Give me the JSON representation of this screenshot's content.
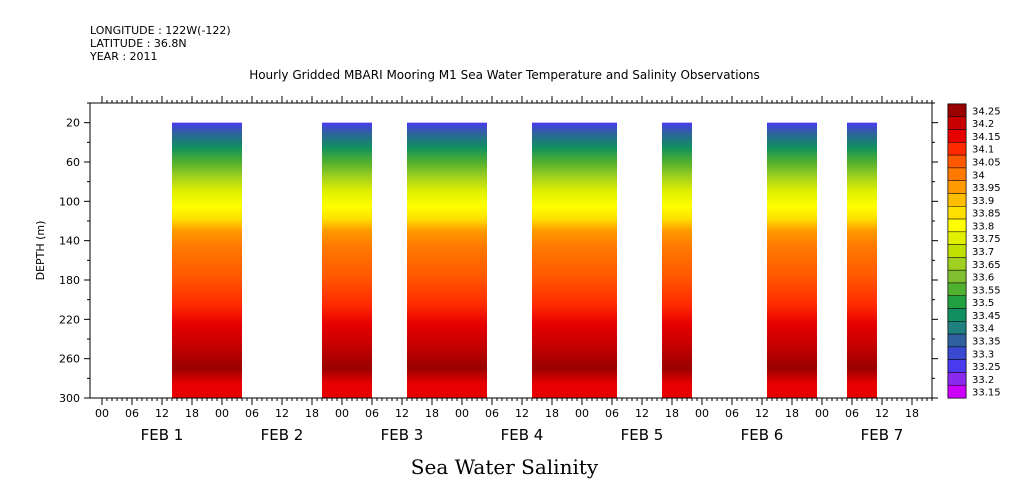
{
  "header": {
    "longitude": "LONGITUDE : 122W(-122)",
    "latitude": "LATITUDE : 36.8N",
    "year": "YEAR : 2011"
  },
  "title": "Hourly Gridded MBARI Mooring M1 Sea Water Temperature and Salinity Observations",
  "bottom_title": "Sea Water Salinity",
  "chart_data": {
    "type": "heatmap",
    "title": "Hourly Gridded MBARI Mooring M1 Sea Water Temperature and Salinity Observations",
    "ylabel": "DEPTH (m)",
    "xlabel": "",
    "ylim": [
      300,
      0
    ],
    "yticks": [
      20,
      60,
      100,
      140,
      180,
      220,
      260,
      300
    ],
    "xticks_hours": [
      "00",
      "06",
      "12",
      "18",
      "00",
      "06",
      "12",
      "18",
      "00",
      "06",
      "12",
      "18",
      "00",
      "06",
      "12",
      "18",
      "00",
      "06",
      "12",
      "18",
      "00",
      "06",
      "12",
      "18",
      "00",
      "06",
      "12",
      "18"
    ],
    "day_labels": [
      "FEB  1",
      "FEB  2",
      "FEB  3",
      "FEB  4",
      "FEB  5",
      "FEB  6",
      "FEB  7"
    ],
    "data_segments": [
      {
        "start": "FEB 1 14:00",
        "end": "FEB 2 04:00"
      },
      {
        "start": "FEB 2 20:00",
        "end": "FEB 3 06:00"
      },
      {
        "start": "FEB 3 13:00",
        "end": "FEB 4 05:00"
      },
      {
        "start": "FEB 4 14:00",
        "end": "FEB 5 07:00"
      },
      {
        "start": "FEB 5 16:00",
        "end": "FEB 5 22:00"
      },
      {
        "start": "FEB 6 13:00",
        "end": "FEB 6 23:00"
      },
      {
        "start": "FEB 7 05:00",
        "end": "FEB 7 11:00"
      }
    ],
    "salinity_profile": [
      {
        "depth": 20,
        "value": 33.25
      },
      {
        "depth": 30,
        "value": 33.35
      },
      {
        "depth": 45,
        "value": 33.45
      },
      {
        "depth": 60,
        "value": 33.55
      },
      {
        "depth": 75,
        "value": 33.65
      },
      {
        "depth": 90,
        "value": 33.75
      },
      {
        "depth": 105,
        "value": 33.8
      },
      {
        "depth": 118,
        "value": 33.85
      },
      {
        "depth": 130,
        "value": 33.95
      },
      {
        "depth": 145,
        "value": 34.0
      },
      {
        "depth": 175,
        "value": 34.05
      },
      {
        "depth": 205,
        "value": 34.1
      },
      {
        "depth": 225,
        "value": 34.15
      },
      {
        "depth": 245,
        "value": 34.2
      },
      {
        "depth": 270,
        "value": 34.25
      },
      {
        "depth": 285,
        "value": 34.15
      },
      {
        "depth": 300,
        "value": 34.15
      }
    ],
    "colorbar": {
      "labels": [
        "34.25",
        "34.2",
        "34.15",
        "34.1",
        "34.05",
        "34",
        "33.95",
        "33.9",
        "33.85",
        "33.8",
        "33.75",
        "33.7",
        "33.65",
        "33.6",
        "33.55",
        "33.5",
        "33.45",
        "33.4",
        "33.35",
        "33.3",
        "33.25",
        "33.2",
        "33.15"
      ],
      "colors": [
        "#990000",
        "#c80000",
        "#e60000",
        "#ff2a00",
        "#ff5a00",
        "#ff7a00",
        "#ff9a00",
        "#ffbd00",
        "#ffdf00",
        "#ffff00",
        "#e0f000",
        "#c0e000",
        "#a0d020",
        "#80c030",
        "#50b030",
        "#20a040",
        "#109060",
        "#208080",
        "#3060a0",
        "#3a4ad0",
        "#4a3af0",
        "#8a2af0",
        "#cc00ff"
      ]
    }
  }
}
